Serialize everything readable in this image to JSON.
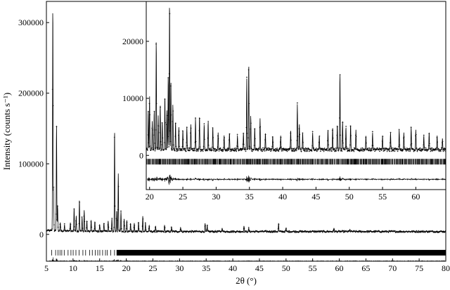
{
  "chart_data": [
    {
      "id": "main",
      "type": "line",
      "title": "",
      "xlabel": "2θ (°)",
      "ylabel": "Intensity (counts s⁻¹)",
      "xlim": [
        5,
        80
      ],
      "ylim": [
        -38000,
        330000
      ],
      "xticks": [
        5,
        10,
        15,
        20,
        25,
        30,
        35,
        40,
        45,
        50,
        55,
        60,
        65,
        70,
        75,
        80
      ],
      "yticks": [
        0,
        100000,
        200000,
        300000
      ],
      "yticklabels": [
        "0",
        "100000",
        "200000",
        "300000"
      ],
      "baseline": 4000,
      "peaks": [
        [
          6.2,
          320000
        ],
        [
          6.35,
          60000
        ],
        [
          6.9,
          150000
        ],
        [
          7.1,
          35000
        ],
        [
          7.6,
          12000
        ],
        [
          8.4,
          9000
        ],
        [
          9.5,
          12000
        ],
        [
          10.2,
          33000
        ],
        [
          10.6,
          22000
        ],
        [
          11.2,
          45000
        ],
        [
          11.7,
          20000
        ],
        [
          12.1,
          30000
        ],
        [
          12.6,
          15000
        ],
        [
          13.4,
          16000
        ],
        [
          14.1,
          14000
        ],
        [
          15.0,
          10000
        ],
        [
          15.8,
          12000
        ],
        [
          16.6,
          15000
        ],
        [
          17.3,
          18000
        ],
        [
          17.8,
          145000
        ],
        [
          18.2,
          30000
        ],
        [
          18.5,
          82000
        ],
        [
          19.0,
          28000
        ],
        [
          19.6,
          18000
        ],
        [
          20.1,
          16000
        ],
        [
          20.8,
          12000
        ],
        [
          21.5,
          12000
        ],
        [
          22.3,
          14000
        ],
        [
          23.1,
          22000
        ],
        [
          23.6,
          12000
        ],
        [
          24.3,
          9000
        ],
        [
          25.5,
          8000
        ],
        [
          27.2,
          9000
        ],
        [
          28.5,
          7000
        ],
        [
          30.2,
          6000
        ],
        [
          34.8,
          12000
        ],
        [
          35.2,
          9000
        ],
        [
          38.0,
          5000
        ],
        [
          42.1,
          8000
        ],
        [
          43.0,
          5000
        ],
        [
          48.6,
          12000
        ],
        [
          50.0,
          5000
        ],
        [
          59.0,
          5000
        ],
        [
          62.0,
          3000
        ]
      ],
      "reflection_ticks": {
        "y": -26000,
        "start": 6.0,
        "end": 80,
        "dense_from": 18
      },
      "difference_curve": {
        "y": -38000,
        "x_range": [
          5.5,
          80
        ]
      }
    },
    {
      "id": "inset",
      "type": "line",
      "title": "",
      "xlabel": "",
      "ylabel": "",
      "xlim": [
        19.5,
        64.5
      ],
      "ylim": [
        -6000,
        27000
      ],
      "xticks": [
        20,
        25,
        30,
        35,
        40,
        45,
        50,
        55,
        60
      ],
      "yticks": [
        0,
        10000,
        20000
      ],
      "yticklabels": [
        "0",
        "10000",
        "20000"
      ],
      "baseline": 800,
      "peaks": [
        [
          19.8,
          7000
        ],
        [
          20.0,
          9500
        ],
        [
          20.4,
          5000
        ],
        [
          20.7,
          7000
        ],
        [
          21.0,
          19500
        ],
        [
          21.3,
          6000
        ],
        [
          21.6,
          8000
        ],
        [
          21.9,
          5000
        ],
        [
          22.3,
          9500
        ],
        [
          22.6,
          7000
        ],
        [
          22.8,
          13000
        ],
        [
          23.0,
          26500
        ],
        [
          23.2,
          12500
        ],
        [
          23.5,
          8000
        ],
        [
          23.9,
          5000
        ],
        [
          24.4,
          4000
        ],
        [
          25.0,
          3500
        ],
        [
          25.6,
          4000
        ],
        [
          26.2,
          4500
        ],
        [
          26.9,
          5500
        ],
        [
          27.5,
          6000
        ],
        [
          28.2,
          4500
        ],
        [
          28.8,
          5000
        ],
        [
          29.5,
          4000
        ],
        [
          30.3,
          3000
        ],
        [
          31.2,
          2500
        ],
        [
          32.0,
          3000
        ],
        [
          33.2,
          2500
        ],
        [
          34.1,
          3000
        ],
        [
          34.6,
          12500
        ],
        [
          34.9,
          15500
        ],
        [
          35.2,
          6000
        ],
        [
          35.8,
          4000
        ],
        [
          36.6,
          5500
        ],
        [
          37.4,
          3000
        ],
        [
          38.5,
          2500
        ],
        [
          39.7,
          2500
        ],
        [
          41.2,
          3500
        ],
        [
          42.2,
          8000
        ],
        [
          42.5,
          4500
        ],
        [
          43.0,
          3000
        ],
        [
          44.5,
          3000
        ],
        [
          45.5,
          2500
        ],
        [
          46.8,
          3500
        ],
        [
          47.5,
          4000
        ],
        [
          48.2,
          4500
        ],
        [
          48.6,
          13500
        ],
        [
          49.0,
          5000
        ],
        [
          49.5,
          4000
        ],
        [
          50.2,
          4500
        ],
        [
          51.0,
          3500
        ],
        [
          52.5,
          2500
        ],
        [
          53.5,
          3000
        ],
        [
          55.0,
          2500
        ],
        [
          56.2,
          3000
        ],
        [
          57.5,
          3500
        ],
        [
          58.2,
          3000
        ],
        [
          59.3,
          4000
        ],
        [
          60.0,
          3500
        ],
        [
          61.2,
          2500
        ],
        [
          62.0,
          3000
        ],
        [
          63.2,
          2500
        ],
        [
          64.0,
          2000
        ]
      ],
      "reflection_ticks": {
        "y": -1100,
        "start": 19.6,
        "end": 64.5,
        "dense_from": 19.6
      },
      "difference_curve": {
        "y": -4200,
        "x_range": [
          19.6,
          64.5
        ]
      }
    }
  ]
}
